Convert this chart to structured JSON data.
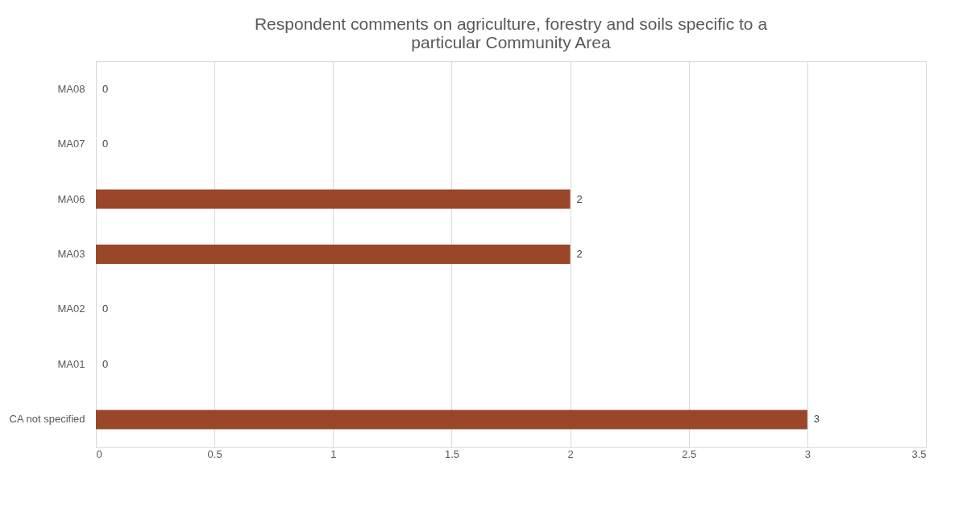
{
  "chart_data": {
    "type": "bar",
    "orientation": "horizontal",
    "title": "Respondent comments on agriculture, forestry and soils specific to a particular Community Area",
    "categories": [
      "MA08",
      "MA07",
      "MA06",
      "MA03",
      "MA02",
      "MA01",
      "CA not specified"
    ],
    "values": [
      0,
      0,
      2,
      2,
      0,
      0,
      3
    ],
    "color": "#9a4629",
    "xlim": [
      0,
      3.5
    ],
    "xticks": [
      0,
      0.5,
      1,
      1.5,
      2,
      2.5,
      3,
      3.5
    ],
    "grid": "x",
    "data_labels": true
  }
}
